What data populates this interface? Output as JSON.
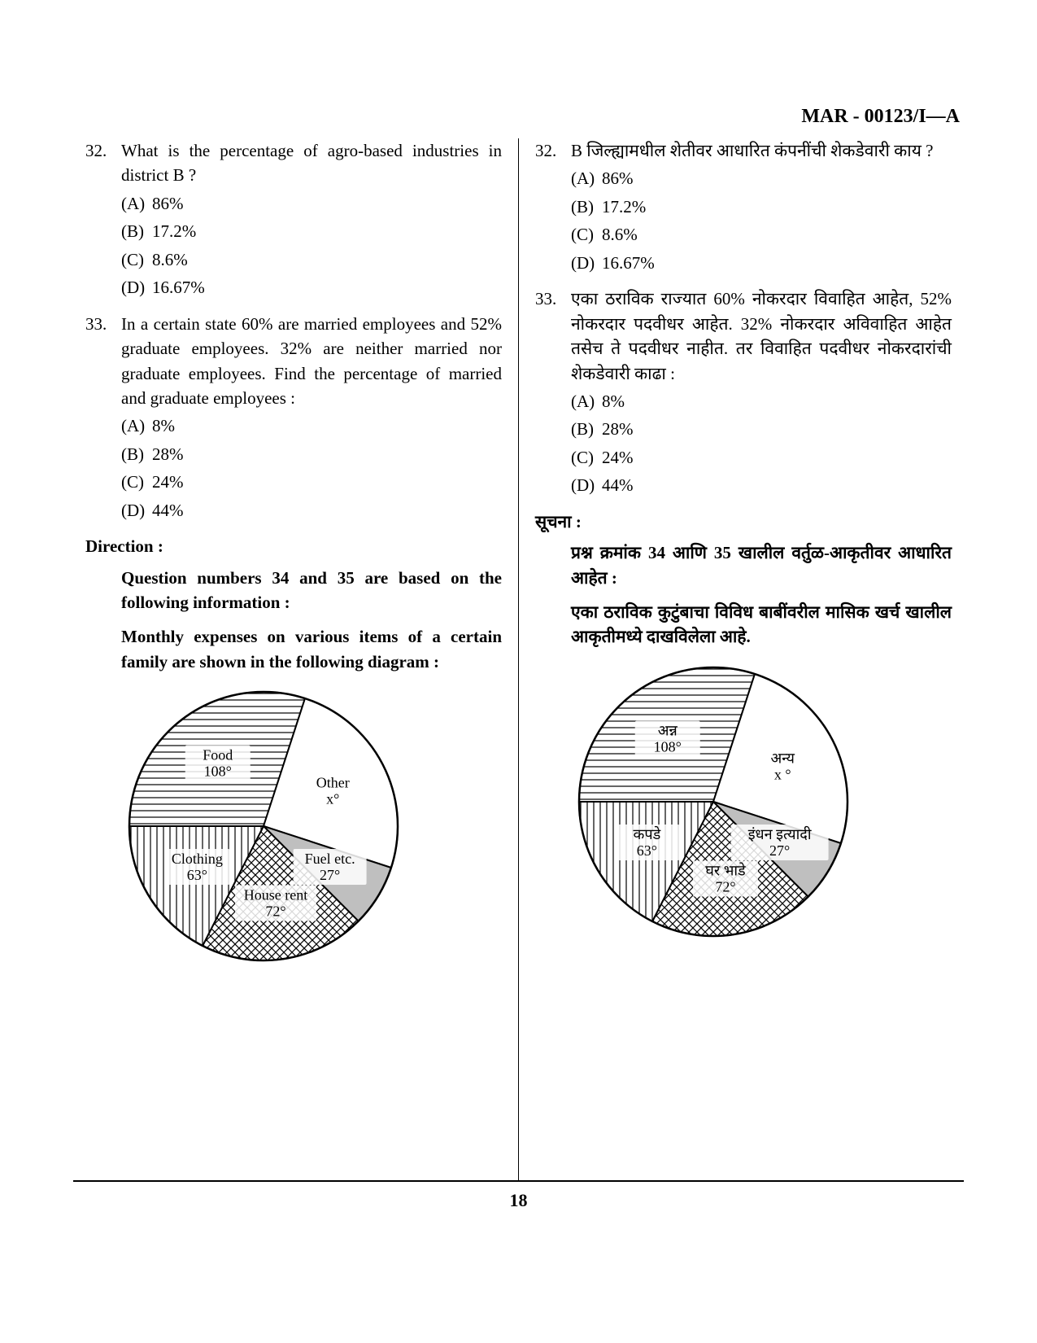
{
  "header_code": "MAR - 00123/I—A",
  "page_number": "18",
  "left": {
    "q32": {
      "num": "32.",
      "text": "What is the percentage of agro-based industries in district B ?",
      "opts": {
        "A": "86%",
        "B": "17.2%",
        "C": "8.6%",
        "D": "16.67%"
      }
    },
    "q33": {
      "num": "33.",
      "text": "In a certain state 60% are married employees and 52% graduate employees. 32% are neither married nor graduate employees. Find the percentage of married and graduate employees :",
      "opts": {
        "A": "8%",
        "B": "28%",
        "C": "24%",
        "D": "44%"
      }
    },
    "direction_heading": "Direction :",
    "direction_body1": "Question numbers 34 and 35 are based on the following information :",
    "direction_body2": "Monthly expenses on various items of a certain family are shown in the following diagram :",
    "pie": {
      "segments": [
        {
          "label": "Food",
          "degrees": "108°",
          "angle": 108,
          "pattern": "hlines"
        },
        {
          "label": "Other",
          "degrees": "x°",
          "angle": 90,
          "pattern": "none"
        },
        {
          "label": "Fuel etc.",
          "degrees": "27°",
          "angle": 27,
          "pattern": "gray"
        },
        {
          "label": "House rent",
          "degrees": "72°",
          "angle": 72,
          "pattern": "crosshatch"
        },
        {
          "label": "Clothing",
          "degrees": "63°",
          "angle": 63,
          "pattern": "vlines"
        }
      ],
      "start_angle": -90,
      "radius": 165,
      "stroke": "#000000",
      "fill_gray": "#bfbfbf"
    }
  },
  "right": {
    "q32": {
      "num": "32.",
      "text": "B जिल्ह्यामधील शेतीवर आधारित कंपनींची शेकडेवारी काय ?",
      "opts": {
        "A": "86%",
        "B": "17.2%",
        "C": "8.6%",
        "D": "16.67%"
      }
    },
    "q33": {
      "num": "33.",
      "text": "एका ठराविक राज्यात 60% नोकरदार विवाहित आहेत, 52% नोकरदार पदवीधर आहेत. 32% नोकरदार अविवाहित आहेत तसेच ते पदवीधर नाहीत. तर विवाहित पदवीधर नोकरदारांची शेकडेवारी काढा :",
      "opts": {
        "A": "8%",
        "B": "28%",
        "C": "24%",
        "D": "44%"
      }
    },
    "direction_heading": "सूचना :",
    "direction_body1": "प्रश्न क्रमांक 34 आणि 35 खालील वर्तुळ-आकृतीवर आधारित आहेत :",
    "direction_body2": "एका ठराविक कुटुंबाचा विविध बाबींवरील मासिक खर्च खालील आकृतीमध्ये दाखविलेला आहे.",
    "pie": {
      "segments": [
        {
          "label": "अन्न",
          "degrees": "108°",
          "angle": 108,
          "pattern": "hlines"
        },
        {
          "label": "अन्य",
          "degrees": "x °",
          "angle": 90,
          "pattern": "none"
        },
        {
          "label": "इंधन इत्यादी",
          "degrees": "27°",
          "angle": 27,
          "pattern": "gray"
        },
        {
          "label": "घर भाडे",
          "degrees": "72°",
          "angle": 72,
          "pattern": "crosshatch"
        },
        {
          "label": "कपडे",
          "degrees": "63°",
          "angle": 63,
          "pattern": "vlines"
        }
      ],
      "start_angle": -90,
      "radius": 165,
      "stroke": "#000000",
      "fill_gray": "#bfbfbf"
    }
  },
  "opt_prefix": {
    "A": "(A)",
    "B": "(B)",
    "C": "(C)",
    "D": "(D)"
  }
}
